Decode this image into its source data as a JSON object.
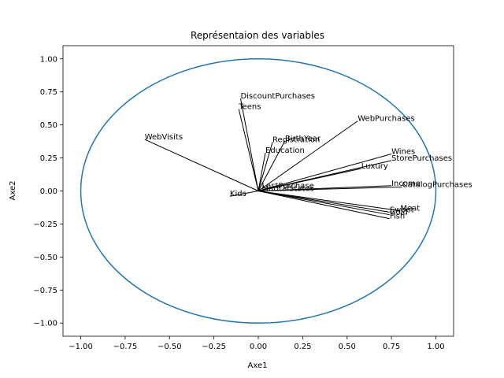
{
  "chart_data": {
    "type": "scatter",
    "title": "Représentaion des variables",
    "xlabel": "Axe1",
    "ylabel": "Axe2",
    "xlim": [
      -1.1,
      1.1
    ],
    "ylim": [
      -1.1,
      1.1
    ],
    "xticks": [
      "−1.00",
      "−0.75",
      "−0.50",
      "−0.25",
      "0.00",
      "0.25",
      "0.50",
      "0.75",
      "1.00"
    ],
    "yticks": [
      "−1.00",
      "−0.75",
      "−0.50",
      "−0.25",
      "0.00",
      "0.25",
      "0.50",
      "0.75",
      "1.00"
    ],
    "grid": false,
    "circle_color": "#1f77b4",
    "variables": [
      {
        "name": "DiscountPurchases",
        "x": -0.1,
        "y": 0.7
      },
      {
        "name": "Teens",
        "x": -0.11,
        "y": 0.62
      },
      {
        "name": "WebVisits",
        "x": -0.64,
        "y": 0.39
      },
      {
        "name": "WebPurchases",
        "x": 0.56,
        "y": 0.53
      },
      {
        "name": "BirthYear",
        "x": 0.15,
        "y": 0.38
      },
      {
        "name": "Registration",
        "x": 0.08,
        "y": 0.37
      },
      {
        "name": "Education",
        "x": 0.04,
        "y": 0.29
      },
      {
        "name": "Wines",
        "x": 0.75,
        "y": 0.28
      },
      {
        "name": "StorePurchases",
        "x": 0.75,
        "y": 0.23
      },
      {
        "name": "Luxury",
        "x": 0.58,
        "y": 0.17
      },
      {
        "name": "Income",
        "x": 0.75,
        "y": 0.04
      },
      {
        "name": "CatalogPurchases",
        "x": 0.81,
        "y": 0.03
      },
      {
        "name": "Kids",
        "x": -0.16,
        "y": -0.04
      },
      {
        "name": "LastPurchase",
        "x": 0.02,
        "y": 0.02
      },
      {
        "name": "MaritalStatus",
        "x": 0.02,
        "y": 0.0
      },
      {
        "name": "Meat",
        "x": 0.8,
        "y": -0.15
      },
      {
        "name": "Sweet",
        "x": 0.74,
        "y": -0.16
      },
      {
        "name": "Gold",
        "x": 0.74,
        "y": -0.18
      },
      {
        "name": "Fish",
        "x": 0.74,
        "y": -0.21
      }
    ]
  }
}
